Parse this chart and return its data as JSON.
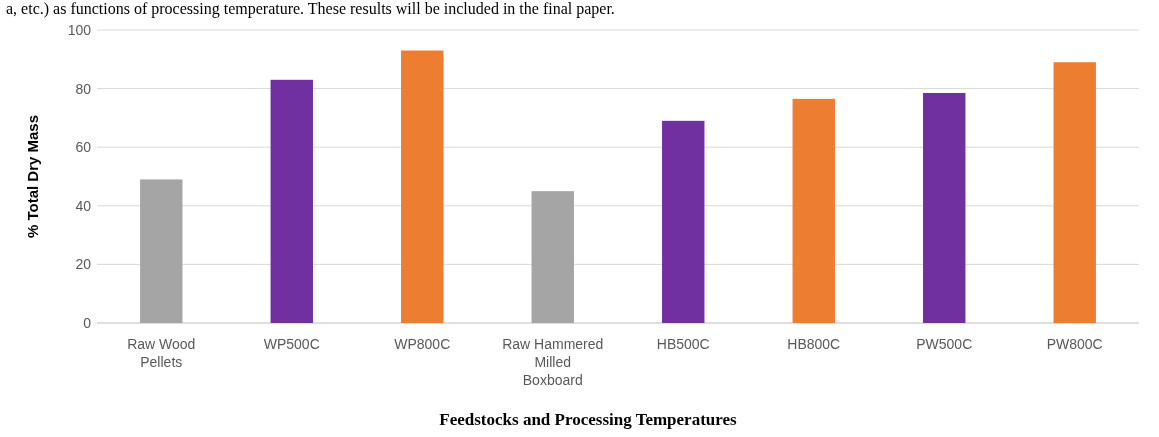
{
  "chart_data": {
    "type": "bar",
    "xlabel": "Feedstocks and Processing Temperatures",
    "ylabel": "% Total Dry Mass",
    "annotations": [
      "a, etc.) as functions of processing temperature. These results will be included in the final paper."
    ],
    "categories": [
      "Raw Wood\nPellets",
      "WP500C",
      "WP800C",
      "Raw Hammered\nMilled\nBoxboard",
      "HB500C",
      "HB800C",
      "PW500C",
      "PW800C"
    ],
    "values": [
      49,
      83,
      93,
      45,
      69,
      76.5,
      78.5,
      89
    ],
    "colors": [
      "#a5a5a5",
      "#7030a0",
      "#ed7d31",
      "#a5a5a5",
      "#7030a0",
      "#ed7d31",
      "#7030a0",
      "#ed7d31"
    ],
    "ylim": [
      0,
      100
    ],
    "yticks": [
      0,
      20,
      40,
      60,
      80,
      100
    ],
    "grid": "y"
  }
}
